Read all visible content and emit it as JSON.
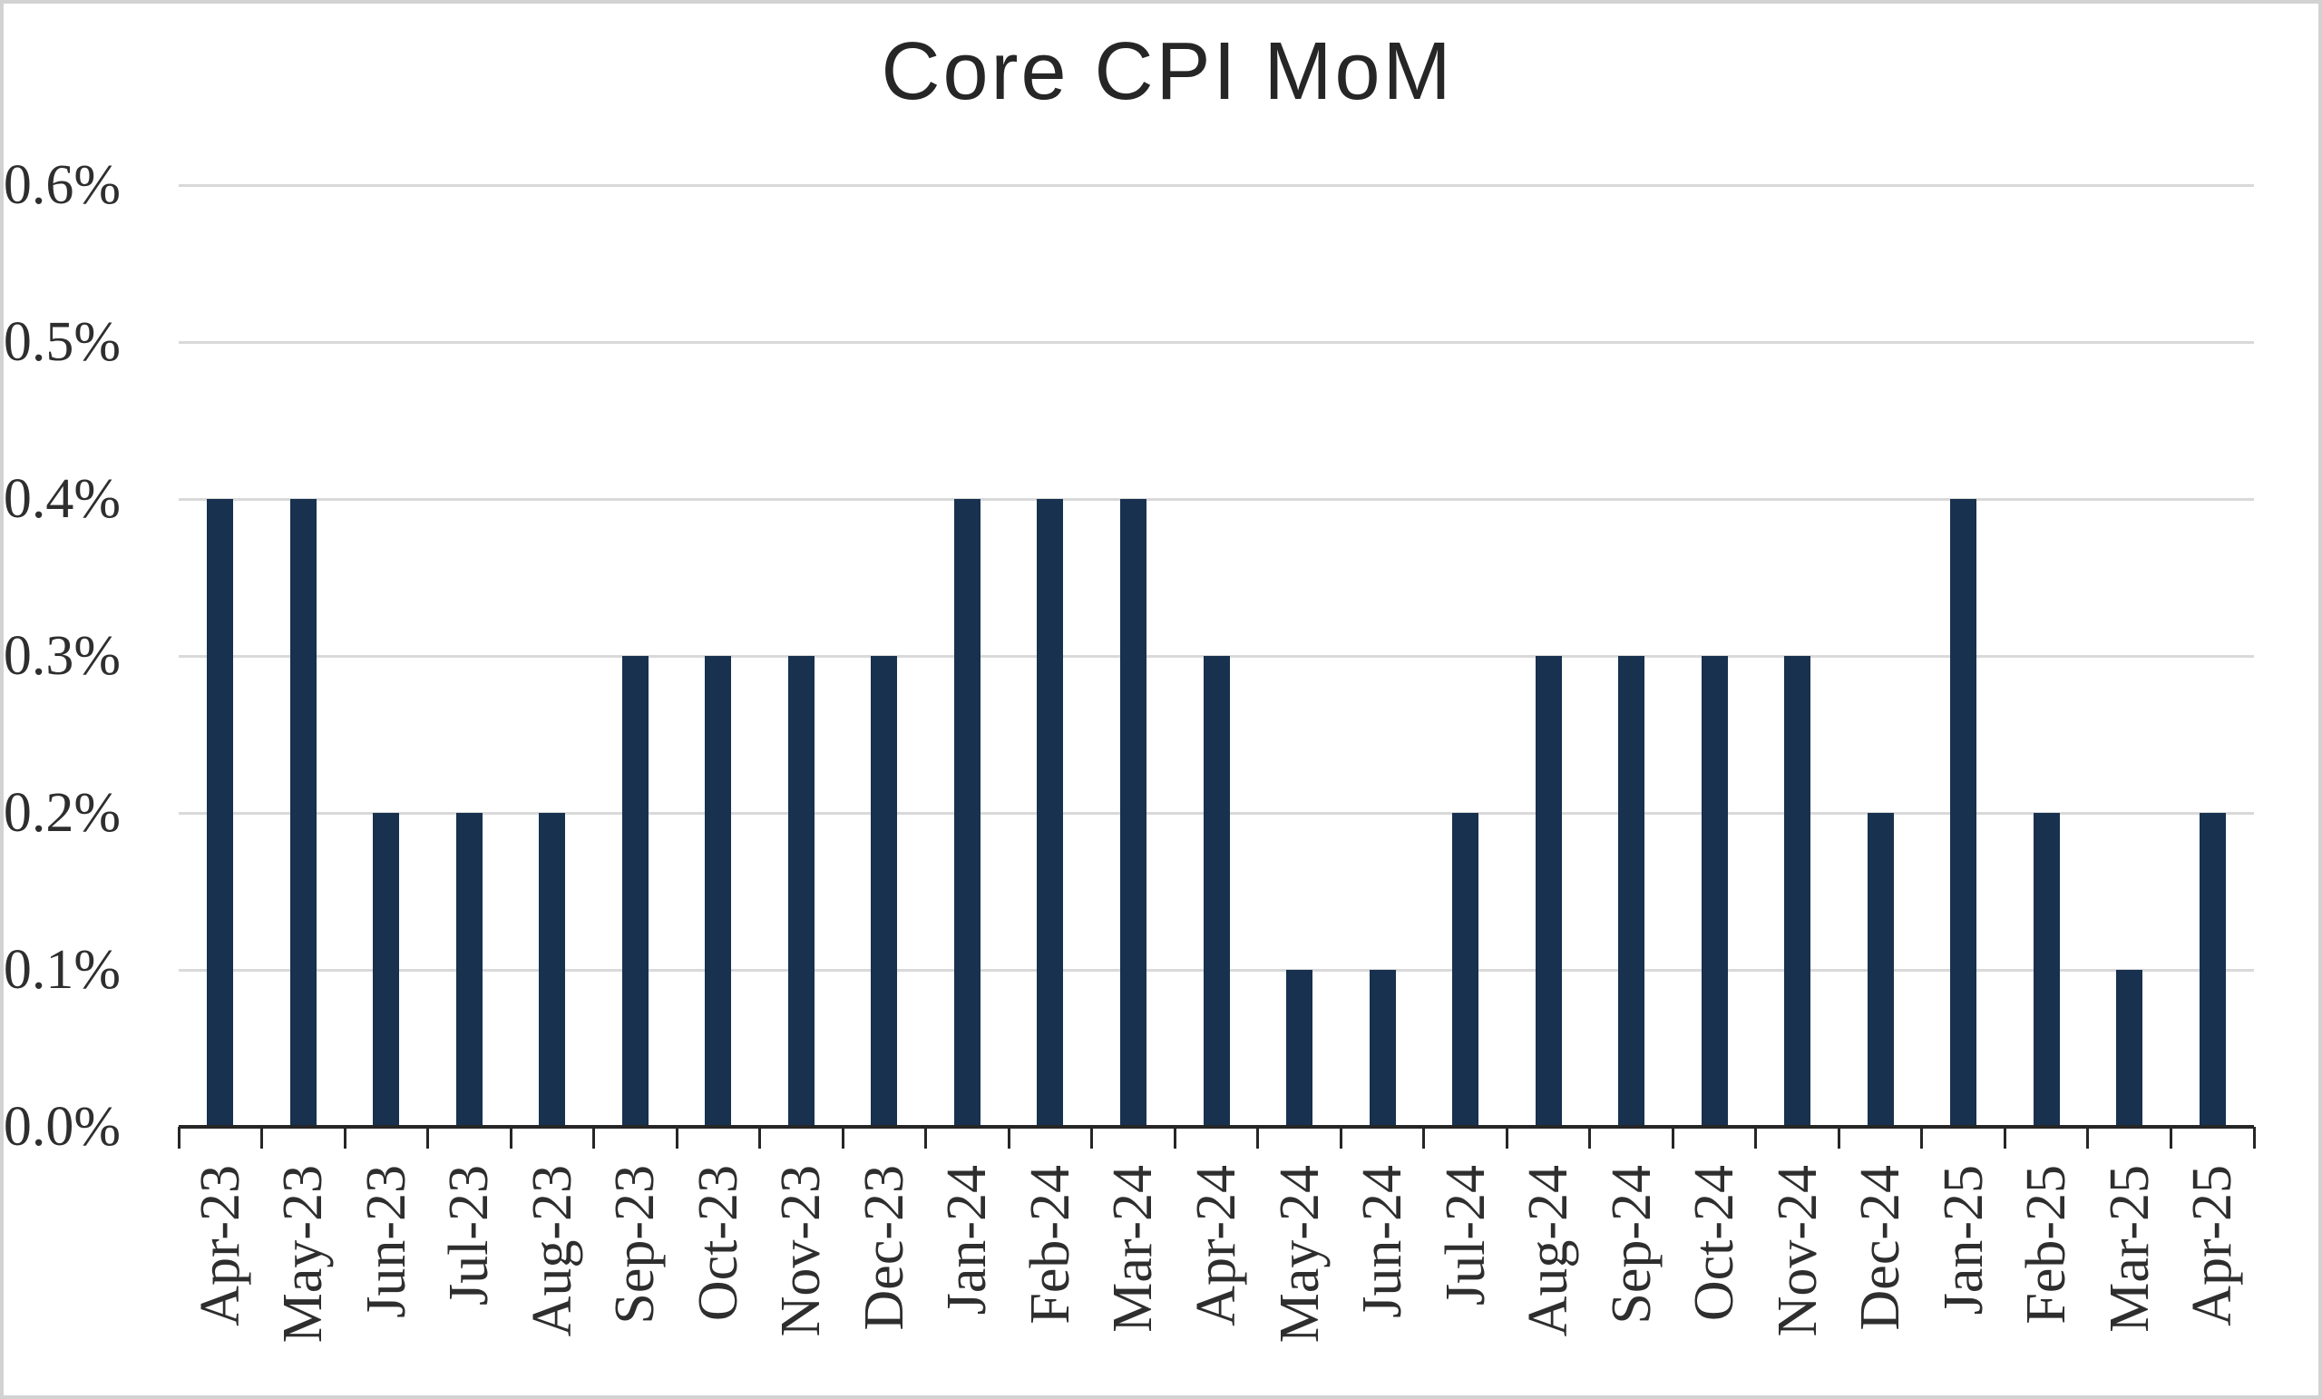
{
  "title": "Core CPI MoM",
  "chart_data": {
    "type": "bar",
    "title": "Core CPI MoM",
    "categories": [
      "Apr-23",
      "May-23",
      "Jun-23",
      "Jul-23",
      "Aug-23",
      "Sep-23",
      "Oct-23",
      "Nov-23",
      "Dec-23",
      "Jan-24",
      "Feb-24",
      "Mar-24",
      "Apr-24",
      "May-24",
      "Jun-24",
      "Jul-24",
      "Aug-24",
      "Sep-24",
      "Oct-24",
      "Nov-24",
      "Dec-24",
      "Jan-25",
      "Feb-25",
      "Mar-25",
      "Apr-25"
    ],
    "values": [
      0.4,
      0.4,
      0.2,
      0.2,
      0.2,
      0.3,
      0.3,
      0.3,
      0.3,
      0.4,
      0.4,
      0.4,
      0.3,
      0.1,
      0.1,
      0.2,
      0.3,
      0.3,
      0.3,
      0.3,
      0.2,
      0.4,
      0.2,
      0.1,
      0.2
    ],
    "unit": "%",
    "xlabel": "",
    "ylabel": "",
    "ylim": [
      0,
      0.6
    ],
    "ytick_step": 0.1,
    "yticks": [
      {
        "value": 0.6,
        "label": "0.6%"
      },
      {
        "value": 0.5,
        "label": "0.5%"
      },
      {
        "value": 0.4,
        "label": "0.4%"
      },
      {
        "value": 0.3,
        "label": "0.3%"
      },
      {
        "value": 0.2,
        "label": "0.2%"
      },
      {
        "value": 0.1,
        "label": "0.1%"
      },
      {
        "value": 0.0,
        "label": "0.0%"
      }
    ],
    "grid": true,
    "legend": false,
    "colors": {
      "bar": "#17314f",
      "gridline": "#d9d9d9",
      "axis": "#262626",
      "tick_label": "#2e2e2e",
      "title": "#262626",
      "background": "#ffffff",
      "frame_border": "#d2d2d2"
    }
  }
}
